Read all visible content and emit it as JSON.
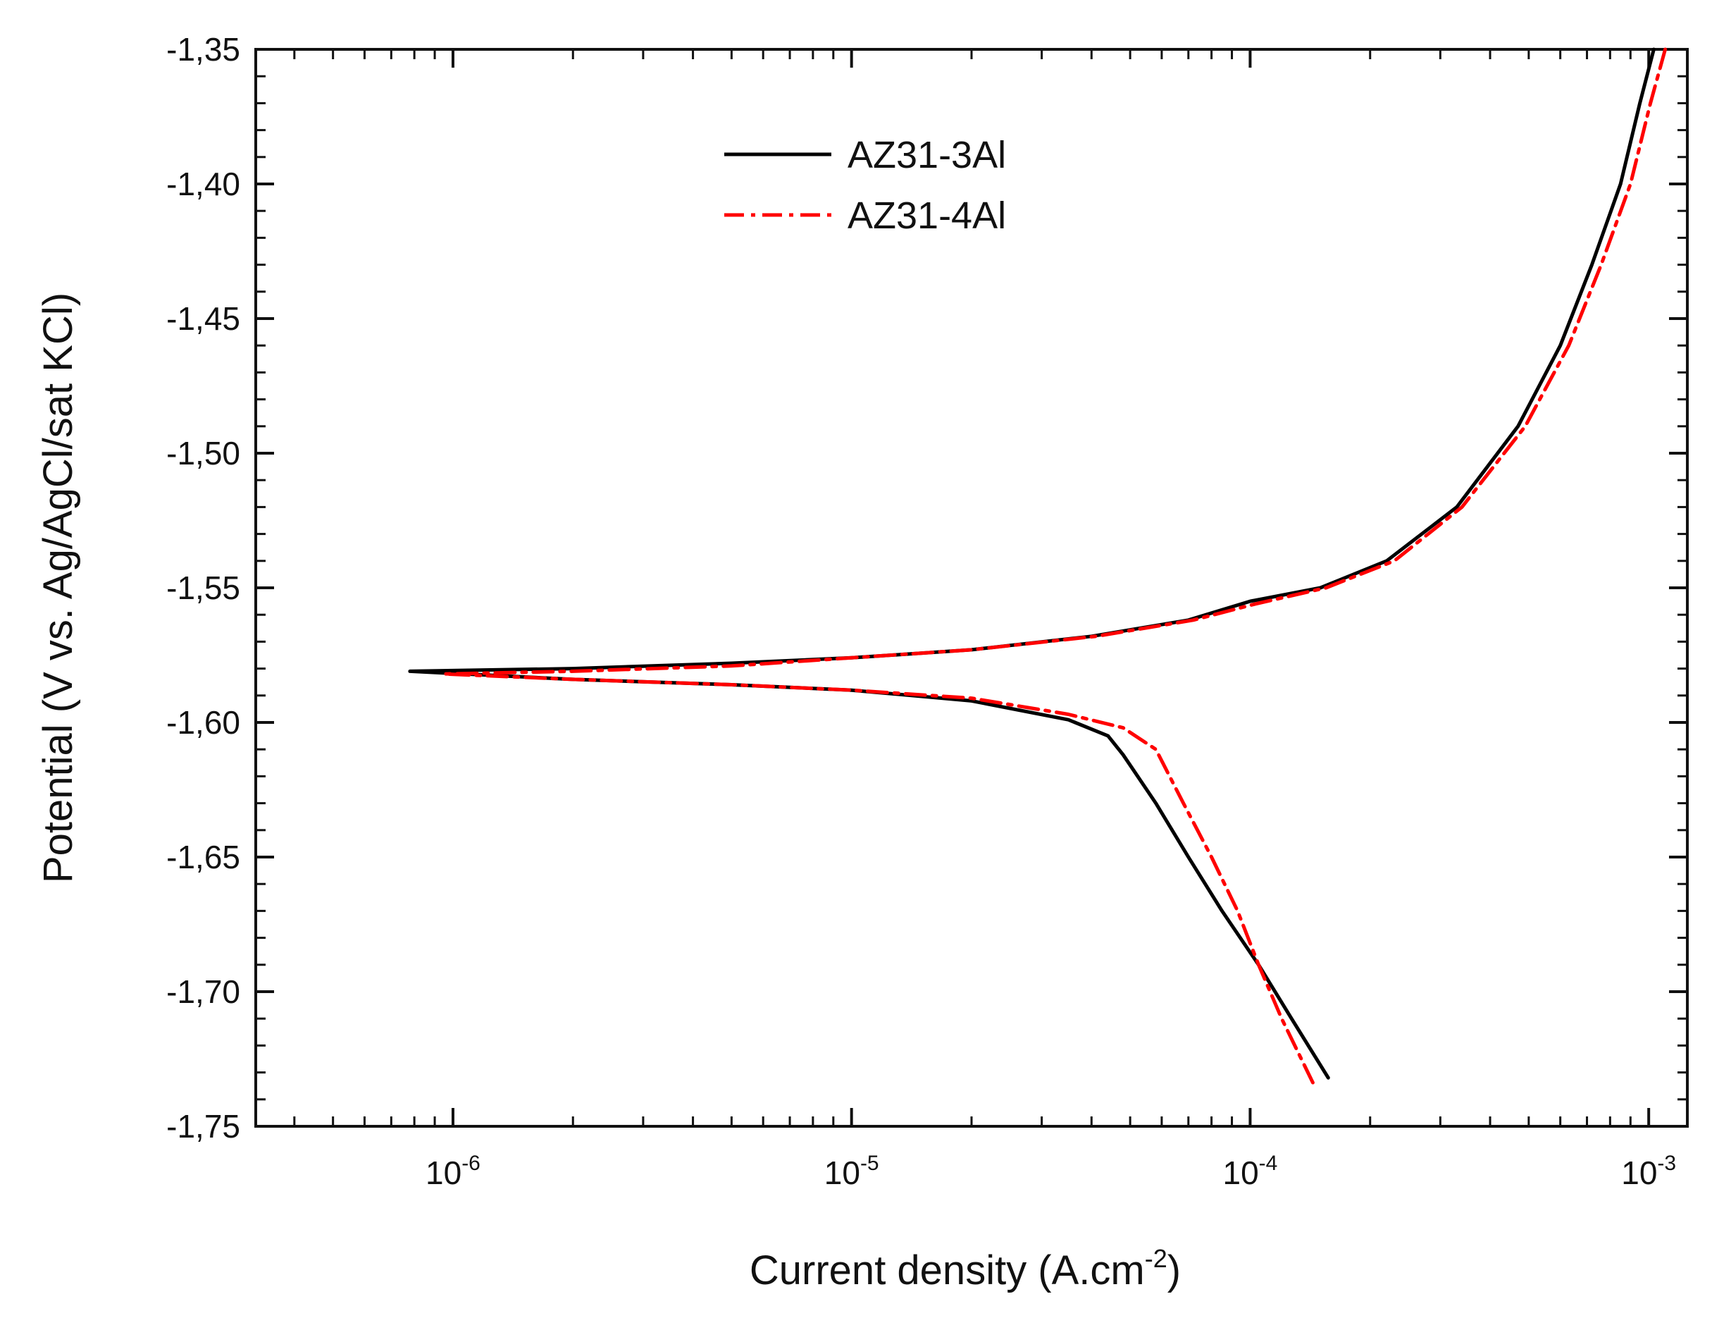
{
  "chart_data": {
    "type": "line",
    "title": "",
    "xlabel": "Current density (A.cm",
    "xlabel_sup": "-2",
    "xlabel_close": ")",
    "ylabel": "Potential (V vs. Ag/AgCl/sat KCl)",
    "x_scale": "log",
    "xlim": [
      3.2e-07,
      0.00125
    ],
    "ylim": [
      -1.75,
      -1.35
    ],
    "grid": false,
    "legend_position": "top-left",
    "x_ticks": [
      {
        "value": 1e-06,
        "base": "10",
        "exp": "-6"
      },
      {
        "value": 1e-05,
        "base": "10",
        "exp": "-5"
      },
      {
        "value": 0.0001,
        "base": "10",
        "exp": "-4"
      },
      {
        "value": 0.001,
        "base": "10",
        "exp": "-3"
      }
    ],
    "y_ticks": [
      {
        "value": -1.75,
        "label": "-1,75"
      },
      {
        "value": -1.7,
        "label": "-1,70"
      },
      {
        "value": -1.65,
        "label": "-1,65"
      },
      {
        "value": -1.6,
        "label": "-1,60"
      },
      {
        "value": -1.55,
        "label": "-1,55"
      },
      {
        "value": -1.5,
        "label": "-1,50"
      },
      {
        "value": -1.45,
        "label": "-1,45"
      },
      {
        "value": -1.4,
        "label": "-1,40"
      },
      {
        "value": -1.35,
        "label": "-1,35"
      }
    ],
    "series": [
      {
        "name": "AZ31-3Al",
        "color": "#000000",
        "dash": "solid",
        "points": [
          [
            0.00103,
            -1.35
          ],
          [
            0.00095,
            -1.37
          ],
          [
            0.00085,
            -1.4
          ],
          [
            0.00072,
            -1.43
          ],
          [
            0.0006,
            -1.46
          ],
          [
            0.00047,
            -1.49
          ],
          [
            0.00033,
            -1.52
          ],
          [
            0.00022,
            -1.54
          ],
          [
            0.00015,
            -1.55
          ],
          [
            0.0001,
            -1.555
          ],
          [
            7e-05,
            -1.562
          ],
          [
            4e-05,
            -1.568
          ],
          [
            2e-05,
            -1.573
          ],
          [
            1e-05,
            -1.576
          ],
          [
            5e-06,
            -1.578
          ],
          [
            2e-06,
            -1.58
          ],
          [
            7.8e-07,
            -1.581
          ],
          [
            2e-06,
            -1.584
          ],
          [
            5e-06,
            -1.586
          ],
          [
            1e-05,
            -1.588
          ],
          [
            2e-05,
            -1.592
          ],
          [
            3.5e-05,
            -1.599
          ],
          [
            4.4e-05,
            -1.605
          ],
          [
            4.8e-05,
            -1.612
          ],
          [
            5.8e-05,
            -1.63
          ],
          [
            7e-05,
            -1.65
          ],
          [
            8.5e-05,
            -1.67
          ],
          [
            0.000105,
            -1.69
          ],
          [
            0.000127,
            -1.71
          ],
          [
            0.000157,
            -1.732
          ]
        ]
      },
      {
        "name": "AZ31-4Al",
        "color": "#ff0000",
        "dash": "dash-dot",
        "points": [
          [
            0.0011,
            -1.35
          ],
          [
            0.00101,
            -1.37
          ],
          [
            0.0009,
            -1.4
          ],
          [
            0.00076,
            -1.43
          ],
          [
            0.00063,
            -1.46
          ],
          [
            0.00049,
            -1.49
          ],
          [
            0.00034,
            -1.52
          ],
          [
            0.00023,
            -1.54
          ],
          [
            0.000155,
            -1.55
          ],
          [
            0.000103,
            -1.556
          ],
          [
            7.2e-05,
            -1.562
          ],
          [
            4.1e-05,
            -1.568
          ],
          [
            2e-05,
            -1.573
          ],
          [
            1e-05,
            -1.576
          ],
          [
            5e-06,
            -1.579
          ],
          [
            2e-06,
            -1.581
          ],
          [
            9.5e-07,
            -1.582
          ],
          [
            2e-06,
            -1.584
          ],
          [
            5e-06,
            -1.586
          ],
          [
            1e-05,
            -1.588
          ],
          [
            2e-05,
            -1.591
          ],
          [
            3.5e-05,
            -1.597
          ],
          [
            4.8e-05,
            -1.602
          ],
          [
            5.8e-05,
            -1.61
          ],
          [
            6.8e-05,
            -1.63
          ],
          [
            8e-05,
            -1.65
          ],
          [
            9.3e-05,
            -1.67
          ],
          [
            0.000105,
            -1.69
          ],
          [
            0.00012,
            -1.71
          ],
          [
            0.000145,
            -1.735
          ]
        ]
      }
    ]
  }
}
